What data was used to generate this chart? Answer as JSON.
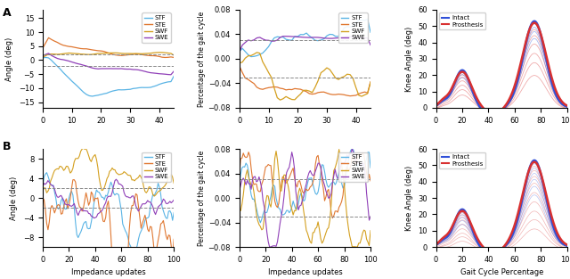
{
  "colors": {
    "STF": "#5ab4e5",
    "STE": "#e07832",
    "SWF": "#d4a020",
    "SWE": "#9040b8",
    "intact": "#3050d8",
    "prosthesis": "#d83030"
  },
  "ylabel_angle": "Angle (deg)",
  "ylabel_pct": "Percentage of the gait cycle",
  "ylabel_knee": "Knee Angle (deg)",
  "xlabel_impedance": "Impedance updates",
  "xlabel_gait": "Gait Cycle Percentage",
  "legend_labels": [
    "STF",
    "STE",
    "SWF",
    "SWE"
  ],
  "legend_labels_knee": [
    "Intact",
    "Prosthesis"
  ]
}
